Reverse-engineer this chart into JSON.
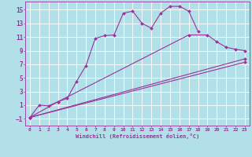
{
  "xlabel": "Windchill (Refroidissement éolien,°C)",
  "bg_color": "#b2e0e8",
  "grid_color": "#ffffff",
  "line_color": "#993399",
  "xlim": [
    -0.5,
    23.5
  ],
  "ylim": [
    -2.0,
    16.2
  ],
  "xticks": [
    0,
    1,
    2,
    3,
    4,
    5,
    6,
    7,
    8,
    9,
    10,
    11,
    12,
    13,
    14,
    15,
    16,
    17,
    18,
    19,
    20,
    21,
    22,
    23
  ],
  "yticks": [
    -1,
    1,
    3,
    5,
    7,
    9,
    11,
    13,
    15
  ],
  "curve1_x": [
    0,
    1,
    2,
    3,
    4,
    5,
    6,
    7,
    8,
    9,
    10,
    11,
    12,
    13,
    14,
    15,
    16,
    17,
    18
  ],
  "curve1_y": [
    -0.8,
    1.0,
    0.9,
    1.5,
    2.0,
    4.5,
    6.8,
    10.8,
    11.2,
    11.3,
    14.5,
    14.8,
    13.0,
    12.3,
    14.5,
    15.5,
    15.5,
    14.8,
    11.8
  ],
  "curve2_x": [
    0,
    3,
    17,
    19,
    20,
    21,
    22,
    23
  ],
  "curve2_y": [
    -0.8,
    1.5,
    11.3,
    11.3,
    10.3,
    9.5,
    9.2,
    9.0
  ],
  "curve3_x": [
    0,
    23
  ],
  "curve3_y": [
    -0.8,
    7.8
  ],
  "curve4_x": [
    0,
    23
  ],
  "curve4_y": [
    -0.8,
    7.3
  ]
}
